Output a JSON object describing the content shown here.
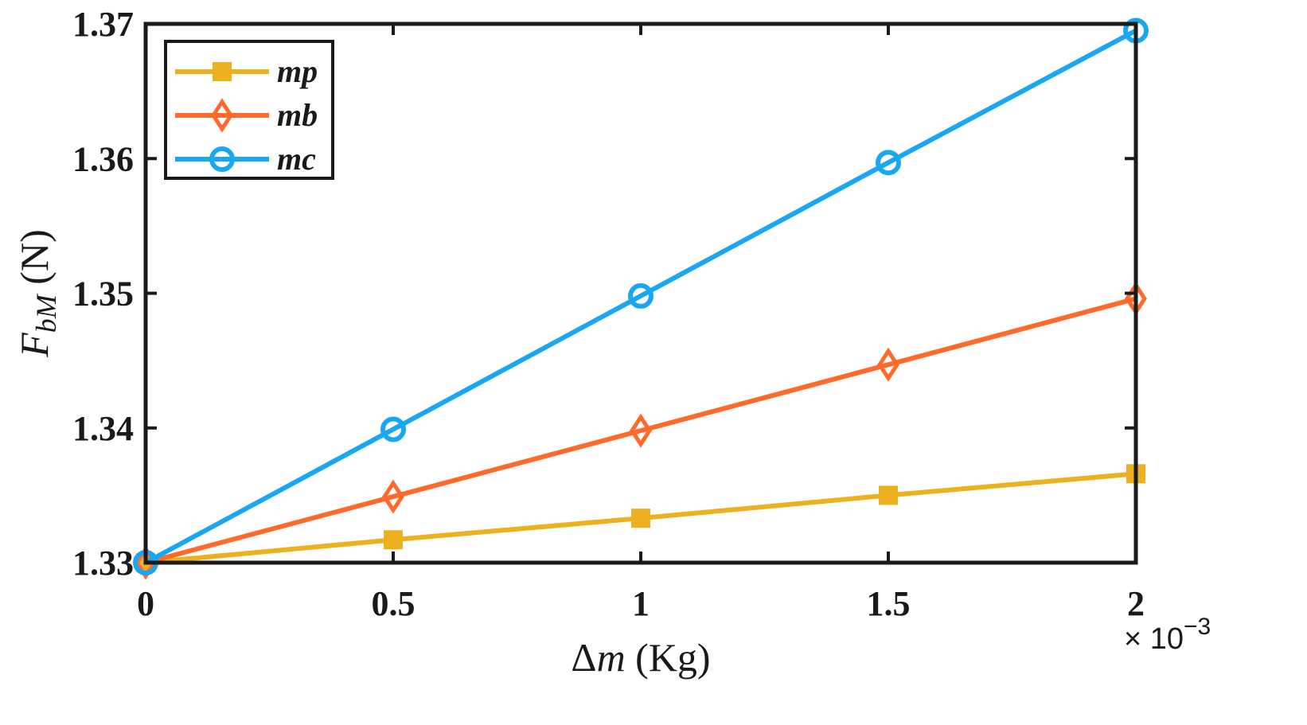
{
  "chart_data": {
    "type": "line",
    "title": "",
    "xlabel": {
      "prefix": "Δ",
      "var": "m",
      "unit": " (Kg)"
    },
    "ylabel": {
      "var": "F",
      "sub": "bM",
      "unit": " (N)"
    },
    "x": [
      0,
      0.5,
      1,
      1.5,
      2
    ],
    "x_multiplier_label": {
      "base": "× 10",
      "exp": "−3"
    },
    "xlim": [
      0,
      2
    ],
    "ylim": [
      1.33,
      1.37
    ],
    "xticks": [
      0,
      0.5,
      1,
      1.5,
      2
    ],
    "xtick_labels": [
      "0",
      "0.5",
      "1",
      "1.5",
      "2"
    ],
    "yticks": [
      1.33,
      1.34,
      1.35,
      1.36,
      1.37
    ],
    "ytick_labels": [
      "1.33",
      "1.34",
      "1.35",
      "1.36",
      "1.37"
    ],
    "grid": false,
    "legend_position": "top-left",
    "series": [
      {
        "name": "mp",
        "color": "#EDB120",
        "marker": "square",
        "values": [
          1.33,
          1.3317,
          1.3333,
          1.335,
          1.3366
        ]
      },
      {
        "name": "mb",
        "color": "#FF6A2B",
        "marker": "diamond",
        "values": [
          1.33,
          1.3349,
          1.3398,
          1.3447,
          1.3496
        ]
      },
      {
        "name": "mc",
        "color": "#1AA7F2",
        "marker": "circle",
        "values": [
          1.33,
          1.3399,
          1.3498,
          1.3597,
          1.3695
        ]
      }
    ]
  }
}
